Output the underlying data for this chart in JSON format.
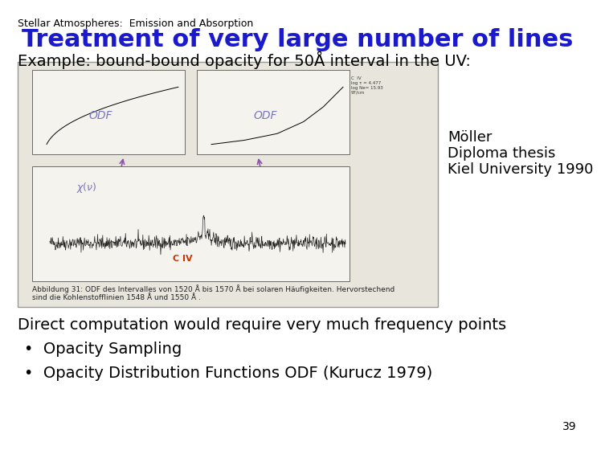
{
  "header": "Stellar Atmospheres:  Emission and Absorption",
  "title": "Treatment of very large number of lines",
  "subtitle": "Example: bound-bound opacity for 50Å interval in the UV:",
  "citation_line1": "Möller",
  "citation_line2": "Diploma thesis",
  "citation_line3": "Kiel University 1990",
  "body_line1": "Direct computation would require very much frequency points",
  "bullet1": "Opacity Sampling",
  "bullet2": "Opacity Distribution Functions ODF (Kurucz 1979)",
  "caption": "Abbildung 31: ODF des Intervalles von 1520 Å bis 1570 Å bei solaren Häufigkeiten. Hervorstechend\nsind die Kohlenstofflinien 1548 Å und 1550 Å .",
  "page_number": "39",
  "bg_color": "#ffffff",
  "header_color": "#000000",
  "title_color": "#1a1acc",
  "body_color": "#000000",
  "image_bg": "#e8e5dc",
  "header_fontsize": 9,
  "title_fontsize": 22,
  "subtitle_fontsize": 14,
  "body_fontsize": 14,
  "citation_fontsize": 13,
  "caption_fontsize": 6.5
}
